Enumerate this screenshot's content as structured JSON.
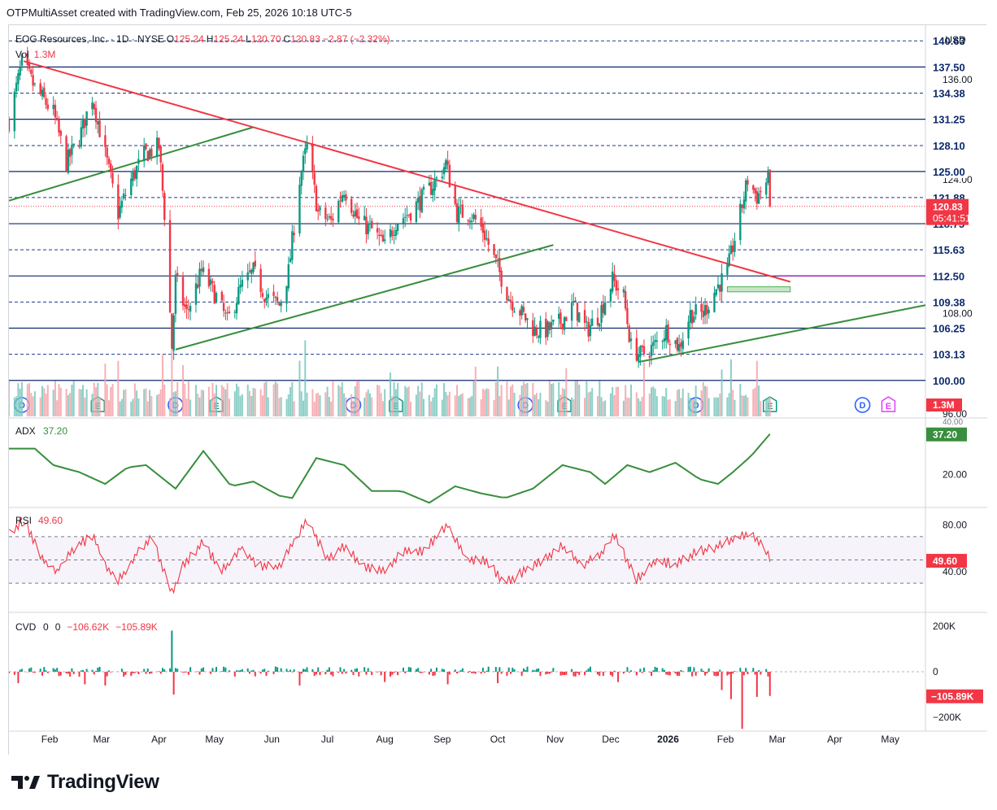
{
  "credit": "OTPMultiAsset created with TradingView.com, Feb 25, 2026 10:18 UTC-5",
  "currency": "USD",
  "footer_brand": "TradingView",
  "legend": {
    "symbol": "EOG Resources, Inc. · 1D · NYSE",
    "o_label": "O",
    "o": "125.24",
    "h_label": "H",
    "h": "125.24",
    "l_label": "L",
    "l": "120.70",
    "c_label": "C",
    "c": "120.83",
    "change": "−2.87 (−2.32%)",
    "vol_label": "Vol",
    "vol": "1.3M"
  },
  "chart_data": [
    {
      "type": "candlestick",
      "panel": "price",
      "x_range": [
        "2025-01-10",
        "2026-05-20"
      ],
      "ylim": [
        95.5,
        142.5
      ],
      "month_labels": [
        "Feb",
        "Mar",
        "Apr",
        "May",
        "Jun",
        "Jul",
        "Aug",
        "Sep",
        "Oct",
        "Nov",
        "Dec",
        "2026",
        "Feb",
        "Mar",
        "Apr",
        "May"
      ],
      "month_dates": [
        "2025-02-01",
        "2025-03-01",
        "2025-04-01",
        "2025-05-01",
        "2025-06-01",
        "2025-07-01",
        "2025-08-01",
        "2025-09-01",
        "2025-10-01",
        "2025-11-01",
        "2025-12-01",
        "2026-01-01",
        "2026-02-01",
        "2026-03-01",
        "2026-04-01",
        "2026-05-01"
      ],
      "tick_labels": [
        "96.00",
        "108.00",
        "124.00",
        "136.00"
      ],
      "level_labels": [
        "140.63",
        "137.50",
        "134.38",
        "131.25",
        "128.10",
        "125.00",
        "121.88",
        "118.75",
        "115.63",
        "112.50",
        "109.38",
        "106.25",
        "103.13",
        "100.00"
      ],
      "solid_levels": [
        137.5,
        131.25,
        125.0,
        118.75,
        112.5,
        106.25,
        100.0
      ],
      "dashed_levels": [
        140.63,
        134.38,
        128.1,
        121.88,
        115.63,
        109.38,
        103.13
      ],
      "last_price": "120.83",
      "countdown": "05:41:51",
      "waypoints": [
        [
          "2025-01-10",
          131
        ],
        [
          "2025-01-17",
          138
        ],
        [
          "2025-01-24",
          135
        ],
        [
          "2025-02-03",
          132
        ],
        [
          "2025-02-10",
          126
        ],
        [
          "2025-02-17",
          129
        ],
        [
          "2025-02-24",
          134
        ],
        [
          "2025-03-03",
          127
        ],
        [
          "2025-03-10",
          120
        ],
        [
          "2025-03-17",
          124
        ],
        [
          "2025-03-24",
          127
        ],
        [
          "2025-04-01",
          128
        ],
        [
          "2025-04-04",
          120
        ],
        [
          "2025-04-08",
          104
        ],
        [
          "2025-04-10",
          112
        ],
        [
          "2025-04-16",
          108
        ],
        [
          "2025-04-24",
          113
        ],
        [
          "2025-05-02",
          110
        ],
        [
          "2025-05-08",
          107
        ],
        [
          "2025-05-15",
          111
        ],
        [
          "2025-05-22",
          113
        ],
        [
          "2025-05-29",
          110
        ],
        [
          "2025-06-05",
          109
        ],
        [
          "2025-06-10",
          113
        ],
        [
          "2025-06-16",
          124
        ],
        [
          "2025-06-20",
          128
        ],
        [
          "2025-06-26",
          120
        ],
        [
          "2025-07-03",
          119
        ],
        [
          "2025-07-10",
          123
        ],
        [
          "2025-07-18",
          119
        ],
        [
          "2025-07-25",
          118
        ],
        [
          "2025-08-01",
          116
        ],
        [
          "2025-08-07",
          119
        ],
        [
          "2025-08-14",
          120
        ],
        [
          "2025-08-22",
          122
        ],
        [
          "2025-08-29",
          124
        ],
        [
          "2025-09-03",
          126
        ],
        [
          "2025-09-09",
          120
        ],
        [
          "2025-09-16",
          120
        ],
        [
          "2025-09-23",
          118
        ],
        [
          "2025-09-30",
          114
        ],
        [
          "2025-10-07",
          110
        ],
        [
          "2025-10-14",
          108
        ],
        [
          "2025-10-21",
          106
        ],
        [
          "2025-10-28",
          106
        ],
        [
          "2025-11-04",
          107
        ],
        [
          "2025-11-11",
          109
        ],
        [
          "2025-11-18",
          106
        ],
        [
          "2025-11-25",
          108
        ],
        [
          "2025-12-02",
          112
        ],
        [
          "2025-12-08",
          110
        ],
        [
          "2025-12-12",
          104
        ],
        [
          "2025-12-17",
          103
        ],
        [
          "2025-12-24",
          104
        ],
        [
          "2025-12-31",
          106
        ],
        [
          "2026-01-07",
          104
        ],
        [
          "2026-01-13",
          108
        ],
        [
          "2026-01-20",
          108
        ],
        [
          "2026-01-27",
          111
        ],
        [
          "2026-02-02",
          113
        ],
        [
          "2026-02-05",
          116
        ],
        [
          "2026-02-09",
          120
        ],
        [
          "2026-02-13",
          124
        ],
        [
          "2026-02-18",
          122
        ],
        [
          "2026-02-24",
          124
        ],
        [
          "2026-02-25",
          120.83
        ]
      ],
      "trendlines": [
        {
          "color": "#f23645",
          "from": [
            "2025-01-18",
            138.2
          ],
          "to": [
            "2026-03-08",
            111.8
          ]
        },
        {
          "color": "#388e3c",
          "from": [
            "2025-01-10",
            121.5
          ],
          "to": [
            "2025-05-22",
            130.3
          ]
        },
        {
          "color": "#388e3c",
          "from": [
            "2025-04-10",
            103.7
          ],
          "to": [
            "2025-10-31",
            116.2
          ]
        },
        {
          "color": "#388e3c",
          "from": [
            "2025-12-16",
            102.2
          ],
          "to": [
            "2026-05-20",
            109.0
          ]
        }
      ],
      "horizontal_ray": {
        "color": "#9c27b0",
        "value": 112.5,
        "from": "2026-03-02"
      },
      "zone_box": {
        "color": "#4caf50",
        "from": "2026-02-02",
        "to": "2026-03-08",
        "low": 110.6,
        "high": 111.2
      },
      "dividend_dates": [
        "2025-01-17",
        "2025-04-10",
        "2025-07-15",
        "2025-10-16",
        "2026-01-16",
        "2026-04-16"
      ],
      "earnings_dates": [
        "2025-02-27",
        "2025-05-02",
        "2025-08-07",
        "2025-11-06",
        "2026-02-25",
        "2026-04-30"
      ],
      "dividend_label": "D",
      "earnings_label": "E"
    },
    {
      "type": "bar",
      "panel": "volume",
      "series": [
        {
          "name": "Vol",
          "last": "1.3M"
        }
      ],
      "volume_spikes": [
        [
          "2025-03-03",
          3.6
        ],
        [
          "2025-03-10",
          3.8
        ],
        [
          "2025-04-03",
          4.2
        ],
        [
          "2025-04-08",
          5.8
        ],
        [
          "2025-04-14",
          3.5
        ],
        [
          "2025-06-16",
          3.8
        ],
        [
          "2025-06-19",
          5.2
        ],
        [
          "2025-08-04",
          3.0
        ],
        [
          "2025-09-19",
          3.4
        ],
        [
          "2025-10-01",
          3.4
        ],
        [
          "2025-11-07",
          3.3
        ],
        [
          "2025-12-19",
          3.7
        ],
        [
          "2026-01-30",
          3.2
        ],
        [
          "2026-02-04",
          3.9
        ],
        [
          "2026-02-18",
          3.8
        ]
      ]
    },
    {
      "type": "line",
      "panel": "ADX",
      "title": "ADX",
      "last": "37.20",
      "tick_labels": [
        "20.00",
        "40.00"
      ],
      "ylim": [
        6,
        44
      ],
      "waypoints": [
        [
          "2025-01-10",
          31
        ],
        [
          "2025-01-24",
          31
        ],
        [
          "2025-02-03",
          24
        ],
        [
          "2025-02-17",
          21
        ],
        [
          "2025-03-03",
          16
        ],
        [
          "2025-03-15",
          23
        ],
        [
          "2025-03-25",
          24
        ],
        [
          "2025-04-10",
          14
        ],
        [
          "2025-04-25",
          30
        ],
        [
          "2025-05-10",
          15
        ],
        [
          "2025-05-22",
          17
        ],
        [
          "2025-06-05",
          11
        ],
        [
          "2025-06-12",
          10
        ],
        [
          "2025-06-25",
          27
        ],
        [
          "2025-07-10",
          24
        ],
        [
          "2025-07-25",
          13
        ],
        [
          "2025-08-10",
          13
        ],
        [
          "2025-08-25",
          8
        ],
        [
          "2025-09-08",
          15
        ],
        [
          "2025-09-22",
          12
        ],
        [
          "2025-10-05",
          10
        ],
        [
          "2025-10-20",
          14
        ],
        [
          "2025-11-05",
          24
        ],
        [
          "2025-11-20",
          21
        ],
        [
          "2025-11-28",
          16
        ],
        [
          "2025-12-10",
          24
        ],
        [
          "2025-12-22",
          21
        ],
        [
          "2026-01-05",
          25
        ],
        [
          "2026-01-18",
          18
        ],
        [
          "2026-01-28",
          16
        ],
        [
          "2026-02-05",
          21
        ],
        [
          "2026-02-15",
          28
        ],
        [
          "2026-02-25",
          37.2
        ]
      ],
      "last_value": 37.2
    },
    {
      "type": "line",
      "panel": "RSI",
      "title": "RSI",
      "last": "49.60",
      "tick_labels": [
        "80.00",
        "40.00"
      ],
      "ylim": [
        5,
        95
      ],
      "bands": {
        "upper": 70,
        "middle": 50,
        "lower": 30
      },
      "waypoints": [
        [
          "2025-01-10",
          72
        ],
        [
          "2025-01-18",
          85
        ],
        [
          "2025-01-28",
          50
        ],
        [
          "2025-02-05",
          40
        ],
        [
          "2025-02-15",
          62
        ],
        [
          "2025-02-25",
          70
        ],
        [
          "2025-03-03",
          45
        ],
        [
          "2025-03-10",
          32
        ],
        [
          "2025-03-20",
          55
        ],
        [
          "2025-03-28",
          70
        ],
        [
          "2025-04-08",
          22
        ],
        [
          "2025-04-15",
          48
        ],
        [
          "2025-04-25",
          65
        ],
        [
          "2025-05-05",
          40
        ],
        [
          "2025-05-15",
          60
        ],
        [
          "2025-05-25",
          45
        ],
        [
          "2025-06-05",
          44
        ],
        [
          "2025-06-20",
          85
        ],
        [
          "2025-07-01",
          50
        ],
        [
          "2025-07-10",
          62
        ],
        [
          "2025-07-20",
          45
        ],
        [
          "2025-08-01",
          40
        ],
        [
          "2025-08-10",
          57
        ],
        [
          "2025-08-22",
          58
        ],
        [
          "2025-09-04",
          80
        ],
        [
          "2025-09-15",
          50
        ],
        [
          "2025-09-25",
          49
        ],
        [
          "2025-10-05",
          30
        ],
        [
          "2025-10-15",
          40
        ],
        [
          "2025-10-25",
          49
        ],
        [
          "2025-11-05",
          62
        ],
        [
          "2025-11-15",
          45
        ],
        [
          "2025-11-25",
          54
        ],
        [
          "2025-12-03",
          71
        ],
        [
          "2025-12-15",
          33
        ],
        [
          "2025-12-25",
          50
        ],
        [
          "2026-01-05",
          46
        ],
        [
          "2026-01-15",
          56
        ],
        [
          "2026-01-25",
          60
        ],
        [
          "2026-02-05",
          68
        ],
        [
          "2026-02-15",
          72
        ],
        [
          "2026-02-22",
          62
        ],
        [
          "2026-02-25",
          49.6
        ]
      ]
    },
    {
      "type": "bar",
      "panel": "CVD",
      "title": "CVD",
      "legend_values": [
        "0",
        "0",
        "−106.62K",
        "−105.89K"
      ],
      "last": "−105.89K",
      "tick_labels": [
        "200K",
        "0",
        "−200K"
      ],
      "ylim": [
        -260,
        260
      ],
      "spikes": [
        [
          "2025-01-15",
          -50
        ],
        [
          "2025-02-20",
          -55
        ],
        [
          "2025-03-03",
          -60
        ],
        [
          "2025-04-08",
          180
        ],
        [
          "2025-04-09",
          -100
        ],
        [
          "2025-06-16",
          -60
        ],
        [
          "2025-08-01",
          -45
        ],
        [
          "2025-09-04",
          -55
        ],
        [
          "2025-10-01",
          -50
        ],
        [
          "2025-12-05",
          -45
        ],
        [
          "2026-01-30",
          -80
        ],
        [
          "2026-02-04",
          -120
        ],
        [
          "2026-02-10",
          -250
        ],
        [
          "2026-02-18",
          -110
        ],
        [
          "2026-02-25",
          -105.89
        ]
      ]
    }
  ]
}
